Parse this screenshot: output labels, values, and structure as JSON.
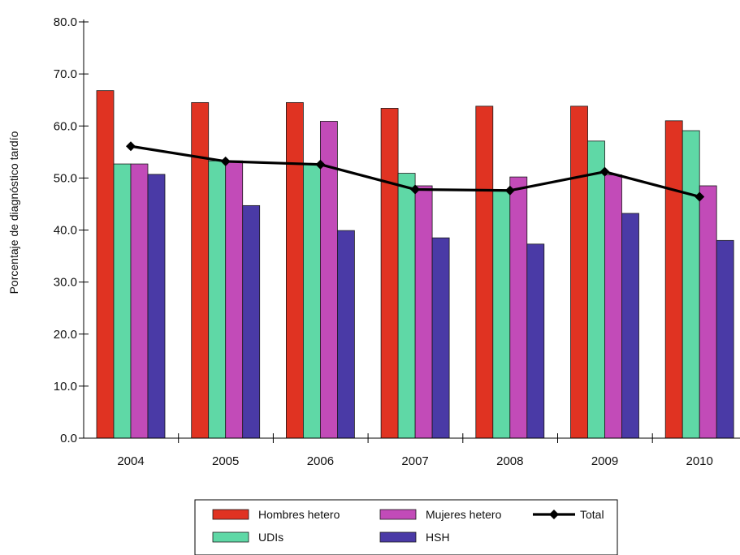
{
  "chart_data": {
    "type": "bar",
    "categories": [
      "2004",
      "2005",
      "2006",
      "2007",
      "2008",
      "2009",
      "2010"
    ],
    "series": [
      {
        "name": "Hombres hetero",
        "kind": "bar",
        "color": "#e03322",
        "values": [
          66.8,
          64.5,
          64.5,
          63.4,
          63.8,
          63.8,
          61.0
        ]
      },
      {
        "name": "UDIs",
        "kind": "bar",
        "color": "#5fd8a6",
        "values": [
          52.7,
          53.3,
          52.6,
          50.9,
          47.6,
          57.1,
          59.1
        ]
      },
      {
        "name": "Mujeres hetero",
        "kind": "bar",
        "color": "#c24bb8",
        "values": [
          52.7,
          53.3,
          60.9,
          48.5,
          50.2,
          50.6,
          48.5
        ]
      },
      {
        "name": "HSH",
        "kind": "bar",
        "color": "#4a3aa6",
        "values": [
          50.7,
          44.7,
          39.9,
          38.5,
          37.3,
          43.2,
          38.0
        ]
      },
      {
        "name": "Total",
        "kind": "line",
        "color": "#000000",
        "values": [
          56.1,
          53.2,
          52.6,
          47.8,
          47.6,
          51.2,
          46.4
        ]
      }
    ],
    "title": "",
    "xlabel": "",
    "ylabel": "Porcentaje de diagnóstico tardío",
    "ylim": [
      0,
      80
    ],
    "yticks": [
      "0.0",
      "10.0",
      "20.0",
      "30.0",
      "40.0",
      "50.0",
      "60.0",
      "70.0",
      "80.0"
    ],
    "grid": false,
    "legend_position": "bottom",
    "legend_order": [
      "Hombres hetero",
      "Mujeres hetero",
      "Total",
      "UDIs",
      "HSH"
    ]
  }
}
